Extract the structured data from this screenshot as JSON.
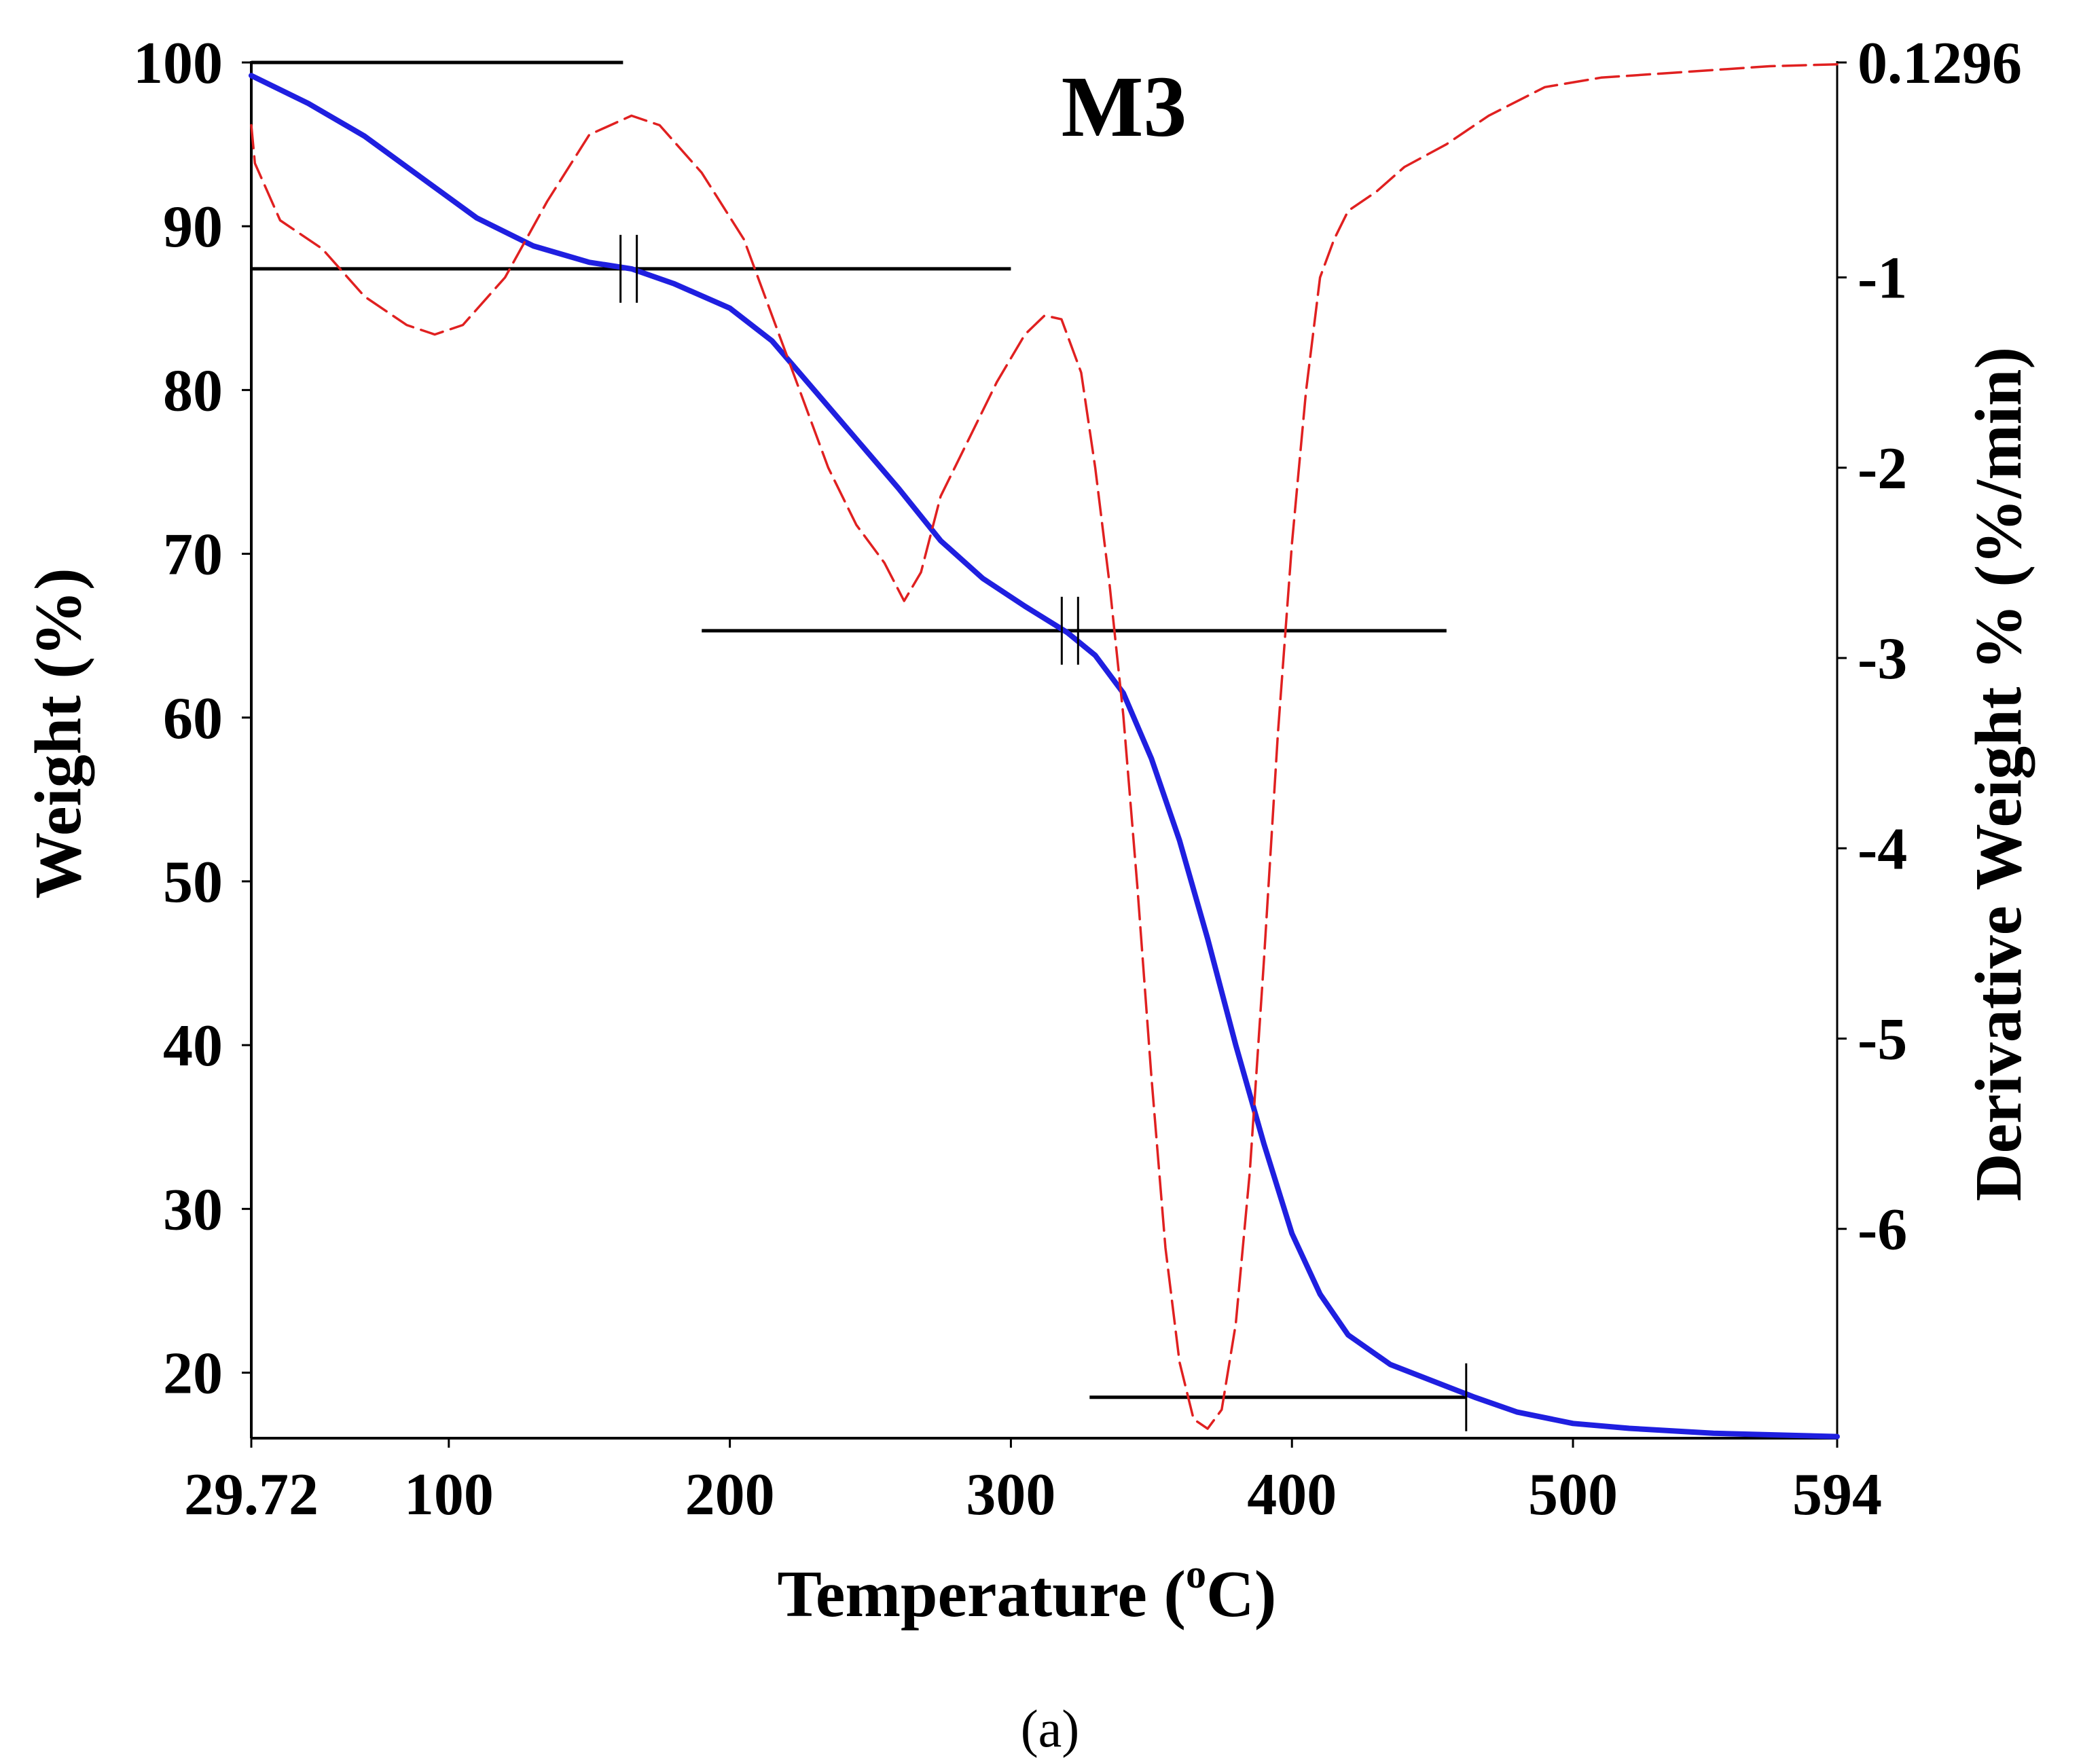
{
  "chart_data": {
    "type": "line",
    "title": "M3",
    "caption": "(a)",
    "xlabel": {
      "main": "Temperature (",
      "sup": "o",
      "unit": "C)"
    },
    "ylabel_left": "Weight (%)",
    "ylabel_right": "Derivative Weight % (%/min)",
    "xlim": [
      29.72,
      594
    ],
    "ylim_left": [
      16,
      100
    ],
    "ylim_right": [
      -7.1,
      0.1296
    ],
    "x_ticks": [
      29.72,
      100,
      200,
      300,
      400,
      500,
      594
    ],
    "x_tick_labels": [
      "29.72",
      "100",
      "200",
      "300",
      "400",
      "500",
      "594"
    ],
    "y_left_ticks": [
      20,
      30,
      40,
      50,
      60,
      70,
      80,
      90,
      100
    ],
    "y_left_tick_labels": [
      "20",
      "30",
      "40",
      "50",
      "60",
      "70",
      "80",
      "90",
      "100"
    ],
    "y_right_ticks": [
      0.1296,
      -1,
      -2,
      -3,
      -4,
      -5,
      -6
    ],
    "y_right_tick_labels": [
      "0.1296",
      "-1",
      "-2",
      "-3",
      "-4",
      "-5",
      "-6"
    ],
    "series": [
      {
        "name": "Weight",
        "axis": "left",
        "color": "#1f1fe0",
        "style": "solid",
        "x": [
          29.72,
          50,
          70,
          90,
          110,
          130,
          150,
          165,
          180,
          200,
          215,
          230,
          245,
          260,
          275,
          290,
          305,
          320,
          330,
          340,
          350,
          360,
          370,
          380,
          390,
          400,
          410,
          420,
          435,
          450,
          465,
          480,
          500,
          520,
          550,
          594
        ],
        "y": [
          99.2,
          97.5,
          95.5,
          93.0,
          90.5,
          88.8,
          87.8,
          87.4,
          86.5,
          85.0,
          83.0,
          80.0,
          77.0,
          74.0,
          70.8,
          68.5,
          66.8,
          65.2,
          63.8,
          61.5,
          57.5,
          52.5,
          46.5,
          40.0,
          34.0,
          28.5,
          24.8,
          22.3,
          20.5,
          19.5,
          18.5,
          17.6,
          16.9,
          16.6,
          16.3,
          16.1
        ]
      },
      {
        "name": "Derivative Weight",
        "axis": "right",
        "color": "#e02020",
        "style": "dashed",
        "x": [
          29.72,
          31,
          40,
          55,
          70,
          85,
          95,
          105,
          120,
          135,
          150,
          165,
          175,
          190,
          205,
          215,
          225,
          235,
          245,
          255,
          262,
          268,
          275,
          285,
          295,
          305,
          312,
          318,
          325,
          330,
          335,
          340,
          345,
          350,
          355,
          360,
          365,
          370,
          375,
          380,
          385,
          390,
          395,
          400,
          405,
          410,
          415,
          420,
          430,
          440,
          455,
          470,
          490,
          510,
          540,
          570,
          594
        ],
        "y": [
          -0.2,
          -0.4,
          -0.7,
          -0.85,
          -1.1,
          -1.25,
          -1.3,
          -1.25,
          -1.0,
          -0.6,
          -0.25,
          -0.15,
          -0.2,
          -0.45,
          -0.8,
          -1.2,
          -1.6,
          -2.0,
          -2.3,
          -2.5,
          -2.7,
          -2.55,
          -2.15,
          -1.85,
          -1.55,
          -1.3,
          -1.2,
          -1.22,
          -1.5,
          -2.0,
          -2.6,
          -3.3,
          -4.2,
          -5.2,
          -6.1,
          -6.7,
          -7.0,
          -7.05,
          -6.95,
          -6.5,
          -5.7,
          -4.6,
          -3.4,
          -2.4,
          -1.6,
          -1.0,
          -0.8,
          -0.65,
          -0.55,
          -0.42,
          -0.3,
          -0.15,
          -0.0,
          0.05,
          0.08,
          0.11,
          0.12
        ]
      }
    ],
    "reference_lines": [
      {
        "axis": "left",
        "y": 100.0,
        "x_from": 29.72,
        "x_to": 162
      },
      {
        "axis": "left",
        "y": 87.4,
        "x_from": 29.72,
        "x_to": 300
      },
      {
        "axis": "left",
        "y": 65.3,
        "x_from": 190,
        "x_to": 455
      },
      {
        "axis": "left",
        "y": 18.5,
        "x_from": 328,
        "x_to": 462
      }
    ],
    "markers": [
      {
        "axis": "left",
        "x": 164,
        "y": 87.4,
        "count": 2
      },
      {
        "axis": "left",
        "x": 321,
        "y": 65.3,
        "count": 2
      },
      {
        "axis": "left",
        "x": 462,
        "y": 18.5,
        "count": 1
      }
    ]
  }
}
